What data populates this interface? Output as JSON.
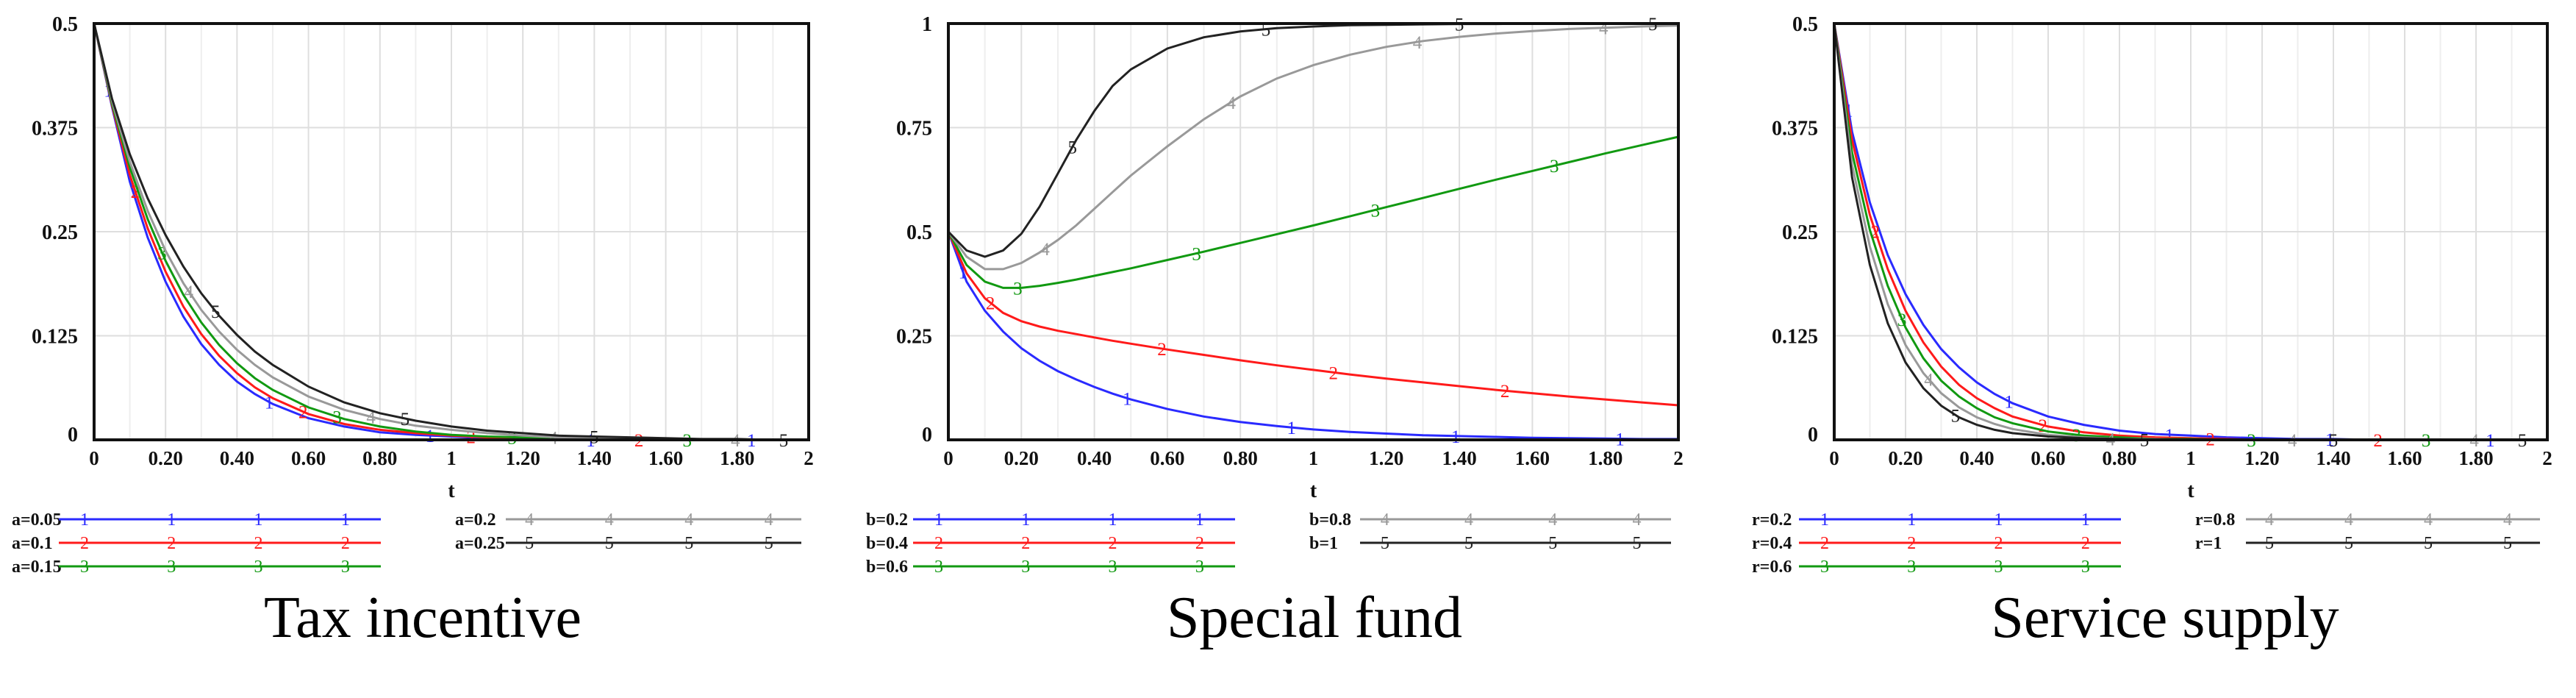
{
  "chart_data": [
    {
      "type": "line",
      "caption": "Tax incentive",
      "xlabel": "t",
      "xlim": [
        0,
        2
      ],
      "ylim": [
        0,
        0.5
      ],
      "xticks": [
        "0",
        "0.20",
        "0.40",
        "0.60",
        "0.80",
        "1",
        "1.20",
        "1.40",
        "1.60",
        "1.80",
        "2"
      ],
      "yticks": [
        "0",
        "0.125",
        "0.25",
        "0.375",
        "0.5"
      ],
      "grid": true,
      "x": [
        0,
        0.05,
        0.1,
        0.15,
        0.2,
        0.25,
        0.3,
        0.35,
        0.4,
        0.45,
        0.5,
        0.6,
        0.7,
        0.8,
        0.9,
        1.0,
        1.1,
        1.2,
        1.3,
        1.4,
        1.5,
        1.6,
        1.7,
        1.8,
        1.9,
        2.0
      ],
      "series": [
        {
          "name": "a=0.05",
          "marker": "1",
          "color": "#2a2aff",
          "values": [
            0.5,
            0.4,
            0.31,
            0.243,
            0.19,
            0.148,
            0.115,
            0.09,
            0.07,
            0.055,
            0.043,
            0.026,
            0.016,
            0.009,
            0.006,
            0.004,
            0.002,
            0.0015,
            0.001,
            0,
            0,
            0,
            0,
            0,
            0,
            0
          ]
        },
        {
          "name": "a=0.1",
          "marker": "2",
          "color": "#ff1a1a",
          "values": [
            0.5,
            0.402,
            0.318,
            0.254,
            0.202,
            0.16,
            0.127,
            0.101,
            0.08,
            0.063,
            0.05,
            0.031,
            0.019,
            0.012,
            0.008,
            0.005,
            0.003,
            0.002,
            0.001,
            0.001,
            0,
            0,
            0,
            0,
            0,
            0
          ]
        },
        {
          "name": "a=0.15",
          "marker": "3",
          "color": "#119911",
          "values": [
            0.5,
            0.404,
            0.327,
            0.265,
            0.215,
            0.174,
            0.141,
            0.114,
            0.092,
            0.074,
            0.06,
            0.039,
            0.025,
            0.016,
            0.01,
            0.006,
            0.004,
            0.003,
            0.002,
            0.001,
            0.001,
            0,
            0,
            0,
            0,
            0
          ]
        },
        {
          "name": "a=0.2",
          "marker": "4",
          "color": "#999999",
          "values": [
            0.5,
            0.407,
            0.334,
            0.275,
            0.227,
            0.188,
            0.156,
            0.13,
            0.108,
            0.09,
            0.075,
            0.052,
            0.036,
            0.025,
            0.017,
            0.012,
            0.008,
            0.005,
            0.003,
            0.002,
            0.001,
            0.001,
            0,
            0,
            0,
            0
          ]
        },
        {
          "name": "a=0.25",
          "marker": "5",
          "color": "#222222",
          "values": [
            0.5,
            0.41,
            0.343,
            0.29,
            0.246,
            0.208,
            0.176,
            0.149,
            0.126,
            0.106,
            0.09,
            0.064,
            0.045,
            0.032,
            0.023,
            0.016,
            0.011,
            0.008,
            0.005,
            0.004,
            0.003,
            0.002,
            0.001,
            0.001,
            0,
            0
          ]
        }
      ]
    },
    {
      "type": "line",
      "caption": "Special fund",
      "xlabel": "t",
      "xlim": [
        0,
        2
      ],
      "ylim": [
        0,
        1
      ],
      "xticks": [
        "0",
        "0.20",
        "0.40",
        "0.60",
        "0.80",
        "1",
        "1.20",
        "1.40",
        "1.60",
        "1.80",
        "2"
      ],
      "yticks": [
        "0",
        "0.25",
        "0.5",
        "0.75",
        "1"
      ],
      "grid": true,
      "x": [
        0,
        0.05,
        0.1,
        0.15,
        0.2,
        0.25,
        0.3,
        0.35,
        0.4,
        0.45,
        0.5,
        0.6,
        0.7,
        0.8,
        0.9,
        1.0,
        1.1,
        1.2,
        1.3,
        1.4,
        1.5,
        1.6,
        1.7,
        1.8,
        1.9,
        2.0
      ],
      "series": [
        {
          "name": "b=0.2",
          "marker": "1",
          "color": "#2a2aff",
          "values": [
            0.5,
            0.38,
            0.31,
            0.26,
            0.22,
            0.19,
            0.165,
            0.145,
            0.127,
            0.111,
            0.097,
            0.074,
            0.056,
            0.043,
            0.033,
            0.025,
            0.019,
            0.015,
            0.011,
            0.009,
            0.007,
            0.005,
            0.004,
            0.003,
            0.002,
            0.002
          ]
        },
        {
          "name": "b=0.4",
          "marker": "2",
          "color": "#ff1a1a",
          "values": [
            0.5,
            0.4,
            0.34,
            0.305,
            0.285,
            0.272,
            0.262,
            0.254,
            0.246,
            0.238,
            0.231,
            0.217,
            0.204,
            0.191,
            0.179,
            0.168,
            0.157,
            0.147,
            0.138,
            0.129,
            0.12,
            0.112,
            0.104,
            0.097,
            0.09,
            0.083
          ]
        },
        {
          "name": "b=0.6",
          "marker": "3",
          "color": "#119911",
          "values": [
            0.5,
            0.42,
            0.38,
            0.365,
            0.365,
            0.37,
            0.377,
            0.385,
            0.394,
            0.403,
            0.412,
            0.432,
            0.452,
            0.473,
            0.494,
            0.515,
            0.537,
            0.559,
            0.581,
            0.603,
            0.625,
            0.646,
            0.667,
            0.688,
            0.708,
            0.728
          ]
        },
        {
          "name": "b=0.8",
          "marker": "4",
          "color": "#999999",
          "values": [
            0.5,
            0.44,
            0.41,
            0.41,
            0.425,
            0.45,
            0.48,
            0.515,
            0.555,
            0.595,
            0.635,
            0.705,
            0.77,
            0.825,
            0.868,
            0.9,
            0.925,
            0.944,
            0.958,
            0.968,
            0.976,
            0.982,
            0.987,
            0.99,
            0.993,
            0.995
          ]
        },
        {
          "name": "b=1",
          "marker": "5",
          "color": "#222222",
          "values": [
            0.5,
            0.455,
            0.44,
            0.455,
            0.495,
            0.56,
            0.64,
            0.72,
            0.79,
            0.85,
            0.89,
            0.94,
            0.967,
            0.981,
            0.989,
            0.993,
            0.996,
            0.997,
            0.998,
            0.999,
            0.999,
            1,
            1,
            1,
            1,
            1
          ]
        }
      ]
    },
    {
      "type": "line",
      "caption": "Service supply",
      "xlabel": "t",
      "xlim": [
        0,
        2
      ],
      "ylim": [
        0,
        0.5
      ],
      "xticks": [
        "0",
        "0.20",
        "0.40",
        "0.60",
        "0.80",
        "1",
        "1.20",
        "1.40",
        "1.60",
        "1.80",
        "2"
      ],
      "yticks": [
        "0",
        "0.125",
        "0.25",
        "0.375",
        "0.5"
      ],
      "grid": true,
      "x": [
        0,
        0.05,
        0.1,
        0.15,
        0.2,
        0.25,
        0.3,
        0.35,
        0.4,
        0.45,
        0.5,
        0.6,
        0.7,
        0.8,
        0.9,
        1.0,
        1.1,
        1.2,
        1.3,
        1.4,
        1.5,
        1.6,
        1.7,
        1.8,
        1.9,
        2.0
      ],
      "series": [
        {
          "name": "r=0.2",
          "marker": "1",
          "color": "#2a2aff",
          "values": [
            0.5,
            0.37,
            0.285,
            0.222,
            0.175,
            0.138,
            0.109,
            0.087,
            0.069,
            0.055,
            0.044,
            0.028,
            0.018,
            0.011,
            0.007,
            0.005,
            0.003,
            0.002,
            0.001,
            0.001,
            0,
            0,
            0,
            0,
            0,
            0
          ]
        },
        {
          "name": "r=0.4",
          "marker": "2",
          "color": "#ff1a1a",
          "values": [
            0.5,
            0.36,
            0.27,
            0.205,
            0.155,
            0.117,
            0.088,
            0.066,
            0.05,
            0.038,
            0.028,
            0.016,
            0.009,
            0.005,
            0.003,
            0.002,
            0.001,
            0,
            0,
            0,
            0,
            0,
            0,
            0,
            0,
            0
          ]
        },
        {
          "name": "r=0.6",
          "marker": "3",
          "color": "#119911",
          "values": [
            0.5,
            0.345,
            0.252,
            0.185,
            0.135,
            0.098,
            0.071,
            0.052,
            0.038,
            0.027,
            0.02,
            0.01,
            0.005,
            0.003,
            0.001,
            0.001,
            0,
            0,
            0,
            0,
            0,
            0,
            0,
            0,
            0,
            0
          ]
        },
        {
          "name": "r=0.8",
          "marker": "4",
          "color": "#999999",
          "values": [
            0.5,
            0.33,
            0.232,
            0.163,
            0.114,
            0.08,
            0.056,
            0.039,
            0.027,
            0.019,
            0.013,
            0.006,
            0.003,
            0.001,
            0.001,
            0,
            0,
            0,
            0,
            0,
            0,
            0,
            0,
            0,
            0,
            0
          ]
        },
        {
          "name": "r=1",
          "marker": "5",
          "color": "#222222",
          "values": [
            0.5,
            0.315,
            0.21,
            0.14,
            0.093,
            0.062,
            0.041,
            0.027,
            0.018,
            0.012,
            0.008,
            0.004,
            0.002,
            0.001,
            0,
            0,
            0,
            0,
            0,
            0,
            0,
            0,
            0,
            0,
            0,
            0
          ]
        }
      ]
    }
  ]
}
